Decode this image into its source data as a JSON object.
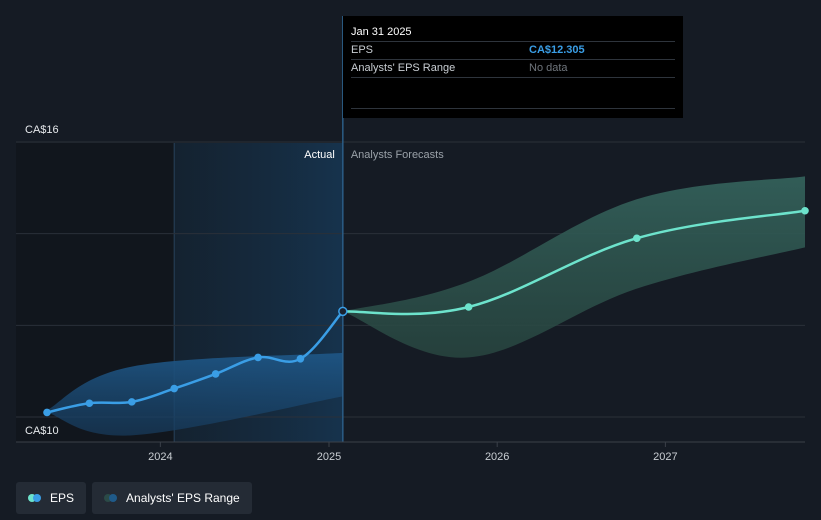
{
  "chart_data": {
    "type": "line",
    "title": "",
    "xlabel": "",
    "ylabel": "",
    "ylim": [
      10,
      16
    ],
    "xlim": [
      "2023-04-30",
      "2027-10-31"
    ],
    "y_tick_labels": [
      {
        "value": 16,
        "label": "CA$16"
      },
      {
        "value": 10,
        "label": "CA$10"
      }
    ],
    "y_gridlines": [
      16,
      14,
      12,
      10
    ],
    "x_ticks": [
      {
        "date": "2024-01-01",
        "label": "2024"
      },
      {
        "date": "2025-01-01",
        "label": "2025"
      },
      {
        "date": "2026-01-01",
        "label": "2026"
      },
      {
        "date": "2027-01-01",
        "label": "2027"
      }
    ],
    "region_labels": {
      "actual": "Actual",
      "forecast": "Analysts Forecasts"
    },
    "divider_date": "2025-01-31",
    "highlight_start_date": "2024-01-31",
    "series": [
      {
        "name": "EPS",
        "color": "#3a9ee6",
        "points": [
          {
            "x": "2023-04-30",
            "y": 10.1
          },
          {
            "x": "2023-07-31",
            "y": 10.3
          },
          {
            "x": "2023-10-31",
            "y": 10.33
          },
          {
            "x": "2024-01-31",
            "y": 10.62
          },
          {
            "x": "2024-04-30",
            "y": 10.94
          },
          {
            "x": "2024-07-31",
            "y": 11.3
          },
          {
            "x": "2024-10-31",
            "y": 11.27
          },
          {
            "x": "2025-01-31",
            "y": 12.305
          }
        ]
      },
      {
        "name": "EPS Forecast",
        "color": "#6de3cc",
        "points": [
          {
            "x": "2025-01-31",
            "y": 12.305
          },
          {
            "x": "2025-10-31",
            "y": 12.4
          },
          {
            "x": "2026-10-31",
            "y": 13.9
          },
          {
            "x": "2027-10-31",
            "y": 14.5
          }
        ]
      }
    ],
    "ranges": [
      {
        "name": "Analysts' EPS Range",
        "period": "actual",
        "fill": "#1f5a89",
        "upper": [
          {
            "x": "2023-04-30",
            "y": 10.15
          },
          {
            "x": "2023-10-31",
            "y": 11.1
          },
          {
            "x": "2025-01-31",
            "y": 11.4
          }
        ],
        "lower": [
          {
            "x": "2023-04-30",
            "y": 10.1
          },
          {
            "x": "2023-10-31",
            "y": 9.6
          },
          {
            "x": "2025-01-31",
            "y": 10.45
          }
        ]
      },
      {
        "name": "Analysts' EPS Range",
        "period": "forecast",
        "fill": "#2b4a47",
        "upper": [
          {
            "x": "2025-01-31",
            "y": 12.305
          },
          {
            "x": "2025-10-31",
            "y": 12.95
          },
          {
            "x": "2026-10-31",
            "y": 14.75
          },
          {
            "x": "2027-10-31",
            "y": 15.25
          }
        ],
        "lower": [
          {
            "x": "2025-01-31",
            "y": 12.305
          },
          {
            "x": "2025-10-31",
            "y": 11.3
          },
          {
            "x": "2026-10-31",
            "y": 12.8
          },
          {
            "x": "2027-10-31",
            "y": 13.7
          }
        ]
      }
    ],
    "legend": {
      "placement": "bottom-left",
      "items": [
        {
          "label": "EPS",
          "colors": [
            "#3a9ee6",
            "#6de3cc"
          ]
        },
        {
          "label": "Analysts' EPS Range",
          "colors": [
            "#1f5a89",
            "#2b4a47"
          ]
        }
      ]
    },
    "tooltip": {
      "date": "Jan 31 2025",
      "rows": [
        {
          "label": "EPS",
          "value": "CA$12.305"
        },
        {
          "label": "Analysts' EPS Range",
          "value": "No data"
        }
      ]
    }
  }
}
